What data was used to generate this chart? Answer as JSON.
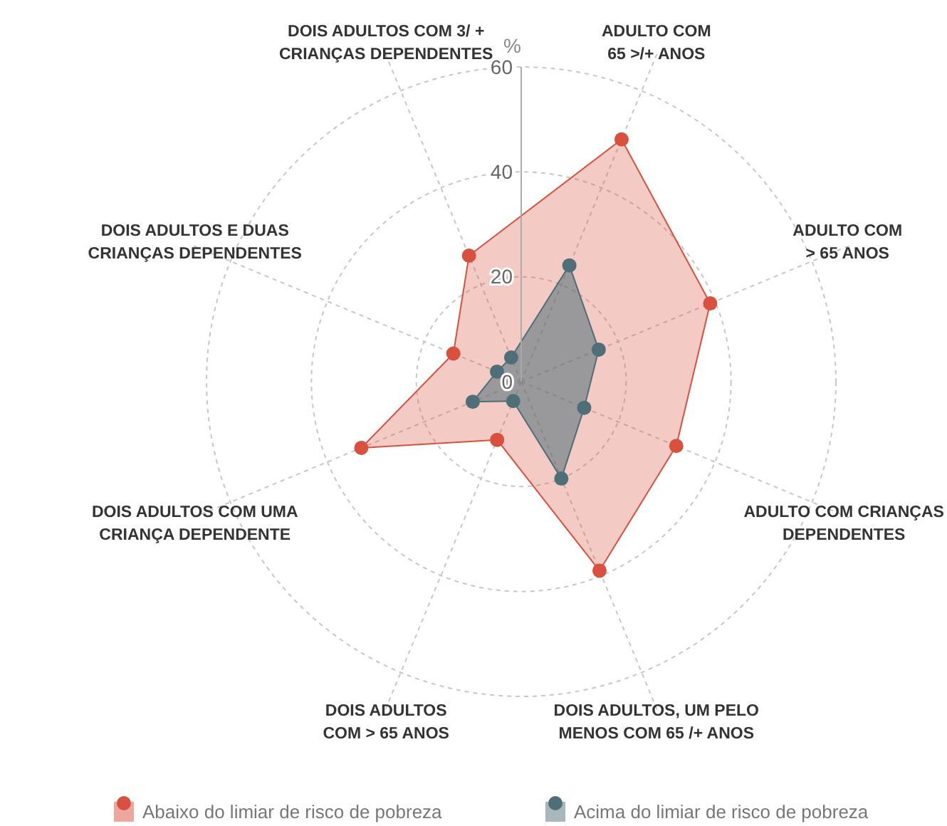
{
  "chart_data": {
    "type": "radar",
    "ylabel": "%",
    "categories": [
      "ADULTO COM\n65 >/+ ANOS",
      "ADULTO COM\n> 65 ANOS",
      "ADULTO COM CRIANÇAS\nDEPENDENTES",
      "DOIS ADULTOS, UM PELO\nMENOS  COM 65 /+ ANOS",
      "DOIS ADULTOS\nCOM  > 65 ANOS",
      "DOIS ADULTOS COM UMA\nCRIANÇA  DEPENDENTE",
      "DOIS ADULTOS E DUAS\nCRIANÇAS DEPENDENTES",
      "DOIS ADULTOS COM 3/ +\nCRIANÇAS DEPENDENTES"
    ],
    "series": [
      {
        "name": "Abaixo do limiar de risco de pobreza",
        "color": "#d9503f",
        "values": [
          50,
          39,
          32,
          39,
          12,
          33,
          14,
          26
        ]
      },
      {
        "name": "Acima do limiar de risco de pobreza",
        "color": "#4f6f78",
        "values": [
          24,
          16,
          13,
          20,
          4,
          10,
          5,
          5
        ]
      }
    ],
    "ylim": [
      0,
      60
    ],
    "yticks": [
      0,
      20,
      40,
      60
    ],
    "grid": true,
    "legend": "bottom",
    "marker": "circle"
  }
}
